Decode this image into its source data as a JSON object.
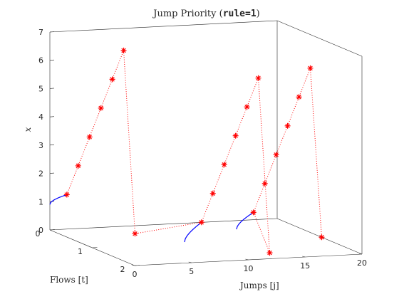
{
  "chart_data": {
    "type": "line",
    "title_prefix": "Jump Priority (",
    "title_code": "rule=1",
    "title_suffix": ")",
    "xlabel": "Jumps [j]",
    "ylabel": "Flows [t]",
    "zlabel": "x",
    "xlim": [
      0,
      20
    ],
    "ylim": [
      0,
      2
    ],
    "zlim": [
      0,
      7
    ],
    "xticks": [
      "0",
      "5",
      "10",
      "15",
      "20"
    ],
    "yticks": [
      "0",
      "1",
      "2"
    ],
    "zticks": [
      "0",
      "1",
      "2",
      "3",
      "4",
      "5",
      "6",
      "7"
    ],
    "grid": false,
    "series": [
      {
        "kind": "flow",
        "color": "#0000ff",
        "segments": [
          {
            "j": 0,
            "t": [
              0,
              0.4
            ],
            "x": [
              0.9,
              1.5
            ]
          },
          {
            "j": 7,
            "t": [
              1.3,
              1.7
            ],
            "x": [
              0.25,
              1.2
            ]
          },
          {
            "j": 14,
            "t": [
              0.65,
              1.05
            ],
            "x": [
              0.15,
              1.0
            ]
          }
        ]
      },
      {
        "kind": "jumps",
        "color": "#ff0000",
        "points": [
          {
            "j": 0,
            "t": 0.4,
            "x": 1.5
          },
          {
            "j": 1,
            "t": 0.4,
            "x": 2.5
          },
          {
            "j": 2,
            "t": 0.4,
            "x": 3.5
          },
          {
            "j": 3,
            "t": 0.4,
            "x": 4.5
          },
          {
            "j": 4,
            "t": 0.4,
            "x": 5.5
          },
          {
            "j": 5,
            "t": 0.4,
            "x": 6.5
          },
          {
            "j": 6,
            "t": 0.4,
            "x": 0
          },
          {
            "j": 7,
            "t": 1.7,
            "x": 1.2
          },
          {
            "j": 8,
            "t": 1.7,
            "x": 2.2
          },
          {
            "j": 9,
            "t": 1.7,
            "x": 3.2
          },
          {
            "j": 10,
            "t": 1.7,
            "x": 4.2
          },
          {
            "j": 11,
            "t": 1.7,
            "x": 5.2
          },
          {
            "j": 12,
            "t": 1.7,
            "x": 6.2
          },
          {
            "j": 13,
            "t": 1.7,
            "x": 0
          },
          {
            "j": 14,
            "t": 1.05,
            "x": 1.0
          },
          {
            "j": 15,
            "t": 1.05,
            "x": 2.0
          },
          {
            "j": 16,
            "t": 1.05,
            "x": 3.0
          },
          {
            "j": 17,
            "t": 1.05,
            "x": 4.0
          },
          {
            "j": 18,
            "t": 1.05,
            "x": 5.0
          },
          {
            "j": 19,
            "t": 1.05,
            "x": 6.0
          },
          {
            "j": 20,
            "t": 1.05,
            "x": 0
          }
        ]
      }
    ]
  }
}
